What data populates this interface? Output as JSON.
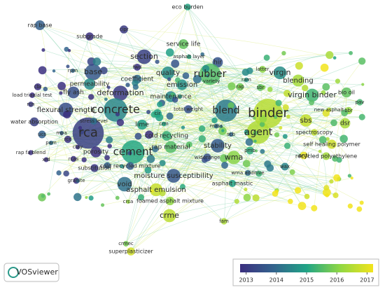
{
  "nodes": [
    "eco burden",
    "rap base",
    "subgrade",
    "cipr",
    "service life",
    "asphalt layer",
    "section",
    "fwd",
    "quality",
    "hir",
    "rpm",
    "base",
    "latter",
    "virgin",
    "ram",
    "variety",
    "permeability",
    "coefficient",
    "emission",
    "rubber",
    "blending",
    "rap",
    "sbr",
    "cbr",
    "load triaxial test",
    "fly ash",
    "deformation",
    "maintenance",
    "virgin binder",
    "bio oil",
    "rcn",
    "flexural strength",
    "concrete",
    "blend",
    "binder",
    "pav",
    "new asphalt",
    "bbr",
    "sbs",
    "water absorption",
    "cir",
    "total weight",
    "agent",
    "dsr",
    "mpa",
    "rca",
    "lime",
    "crm",
    "spectroscopy",
    "ucs",
    "cold recycling",
    "mass",
    "self healing polymer",
    "rcc",
    "porosity",
    "cement",
    "rap material",
    "stability",
    "scb",
    "clay",
    "pam",
    "wma",
    "anti",
    "rap fa blend",
    "rcas",
    "widerange",
    "pmb",
    "recycled polyethylene",
    "xrd",
    "substitution",
    "cold recycled mixture",
    "moisture susceptibility",
    "wma additive",
    "wax",
    "granite",
    "void",
    "asphalt mastic",
    "asphalt emulsion",
    "crca",
    "foamed asphalt mixture",
    "crme",
    "fam",
    "crmec",
    "superplasticizer",
    "stress level"
  ],
  "logo": "VOSviewer",
  "legend": {
    "range": [
      2012.8,
      2017.2
    ],
    "ticks": [
      2013,
      2014,
      2015,
      2016,
      2017
    ]
  }
}
